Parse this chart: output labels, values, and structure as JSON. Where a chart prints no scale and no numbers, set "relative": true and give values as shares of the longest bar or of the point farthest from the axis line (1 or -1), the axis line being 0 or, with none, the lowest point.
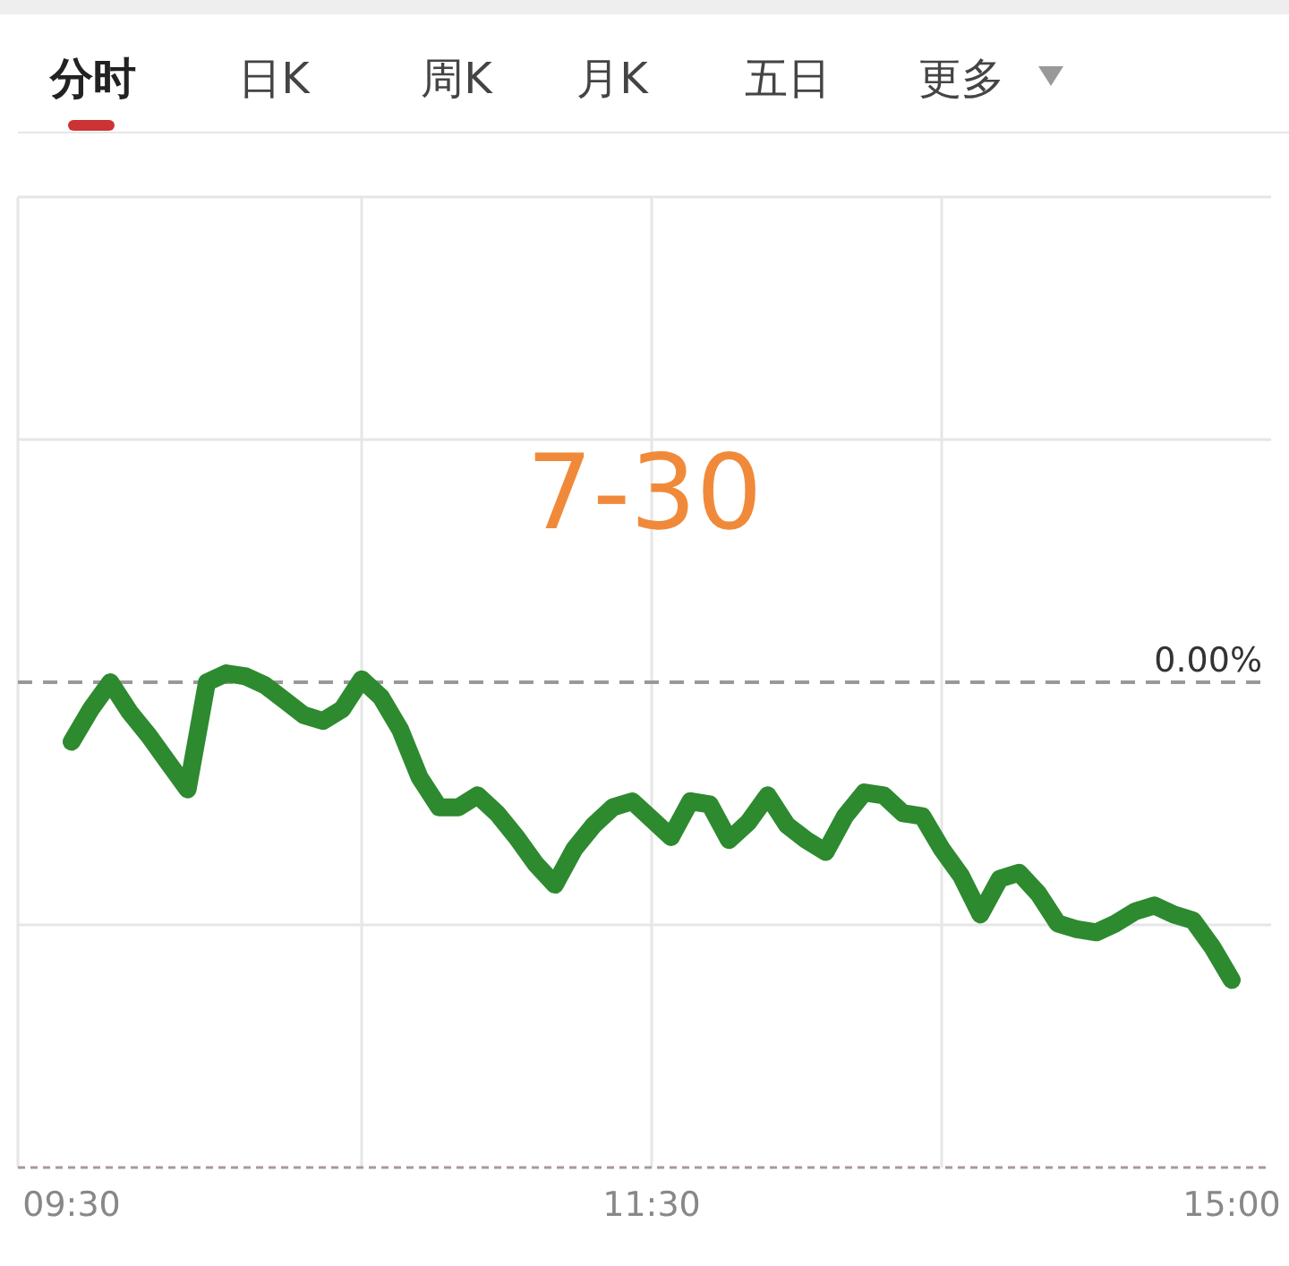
{
  "chart_data": {
    "type": "line",
    "title": "7-30",
    "annotations": [
      "分时",
      "日K",
      "周K",
      "月K",
      "五日",
      "更多"
    ],
    "relative": true,
    "grid": true,
    "tick_labels": "x",
    "marker": "none",
    "line_style": "solid",
    "categories": [
      "09:30",
      null,
      null,
      null,
      null,
      null,
      null,
      null,
      null,
      null,
      null,
      null,
      null,
      null,
      null,
      null,
      null,
      null,
      null,
      null,
      null,
      null,
      null,
      null,
      null,
      null,
      null,
      null,
      null,
      null,
      "11:30",
      null,
      null,
      null,
      null,
      null,
      null,
      null,
      null,
      null,
      null,
      null,
      null,
      null,
      null,
      null,
      null,
      null,
      null,
      null,
      null,
      null,
      null,
      null,
      null,
      null,
      null,
      null,
      null,
      null,
      "15:00"
    ],
    "ref_lines": [
      {
        "axis": "y",
        "value": 0,
        "label": "0.00%",
        "line_style": "dashed",
        "color": "#999999"
      }
    ],
    "series": [
      {
        "color": "#2d8a2f",
        "values": [
          -0.2,
          -0.09,
          0,
          -0.1,
          -0.18,
          -0.27,
          -0.36,
          0,
          0.03,
          0.02,
          -0.01,
          -0.06,
          -0.11,
          -0.13,
          -0.09,
          0.01,
          -0.05,
          -0.16,
          -0.32,
          -0.42,
          -0.42,
          -0.38,
          -0.44,
          -0.52,
          -0.61,
          -0.68,
          -0.56,
          -0.48,
          -0.42,
          -0.4,
          -0.46,
          -0.52,
          -0.4,
          -0.41,
          -0.53,
          -0.47,
          -0.38,
          -0.48,
          -0.53,
          -0.57,
          -0.45,
          -0.37,
          -0.38,
          -0.44,
          -0.45,
          -0.56,
          -0.65,
          -0.78,
          -0.66,
          -0.64,
          -0.71,
          -0.81,
          -0.83,
          -0.84,
          -0.81,
          -0.77,
          -0.75,
          -0.78,
          -0.8,
          -0.89,
          -1
        ]
      }
    ]
  }
}
